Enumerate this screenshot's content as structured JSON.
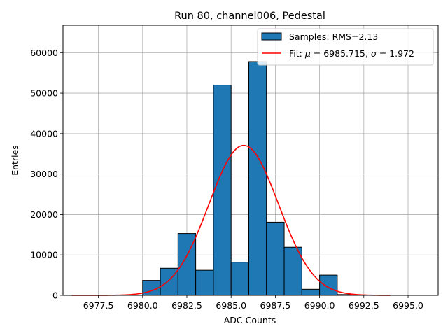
{
  "chart_data": {
    "type": "bar",
    "title": "Run 80, channel006, Pedestal",
    "xlabel": "ADC Counts",
    "ylabel": "Entries",
    "xlim": [
      6975.5,
      6996.7
    ],
    "ylim": [
      0,
      66800
    ],
    "grid": true,
    "legend_position": "top-right",
    "xticks": [
      6977.5,
      6980.0,
      6982.5,
      6985.0,
      6987.5,
      6990.0,
      6992.5,
      6995.0
    ],
    "xtick_labels": [
      "6977.5",
      "6980.0",
      "6982.5",
      "6985.0",
      "6987.5",
      "6990.0",
      "6992.5",
      "6995.0"
    ],
    "yticks": [
      0,
      10000,
      20000,
      30000,
      40000,
      50000,
      60000
    ],
    "ytick_labels": [
      "0",
      "10000",
      "20000",
      "30000",
      "40000",
      "50000",
      "60000"
    ],
    "histogram": {
      "name": "Samples: RMS=2.13",
      "color": "#1f77b4",
      "edge_color": "#000000",
      "bins": [
        {
          "x0": 6980.0,
          "x1": 6981.0,
          "value": 3700
        },
        {
          "x0": 6981.0,
          "x1": 6982.0,
          "value": 6700
        },
        {
          "x0": 6982.0,
          "x1": 6983.0,
          "value": 15300
        },
        {
          "x0": 6983.0,
          "x1": 6984.0,
          "value": 6200
        },
        {
          "x0": 6984.0,
          "x1": 6985.0,
          "value": 52000
        },
        {
          "x0": 6985.0,
          "x1": 6986.0,
          "value": 8200
        },
        {
          "x0": 6986.0,
          "x1": 6987.0,
          "value": 57800
        },
        {
          "x0": 6987.0,
          "x1": 6988.0,
          "value": 18100
        },
        {
          "x0": 6988.0,
          "x1": 6989.0,
          "value": 11900
        },
        {
          "x0": 6989.0,
          "x1": 6990.0,
          "value": 1500
        },
        {
          "x0": 6990.0,
          "x1": 6991.0,
          "value": 5000
        },
        {
          "x0": 6991.0,
          "x1": 6992.0,
          "value": 200
        },
        {
          "x0": 6992.0,
          "x1": 6993.0,
          "value": 50
        }
      ]
    },
    "fit": {
      "name_prefix": "Fit: ",
      "name_mu": "μ",
      "name_mid": " = 6985.715, ",
      "name_sigma": "σ",
      "name_suffix": " = 1.972",
      "color": "#ff0000",
      "mu": 6985.715,
      "sigma": 1.972,
      "amplitude": 37100,
      "x_range": [
        6976.0,
        6994.0
      ]
    }
  }
}
